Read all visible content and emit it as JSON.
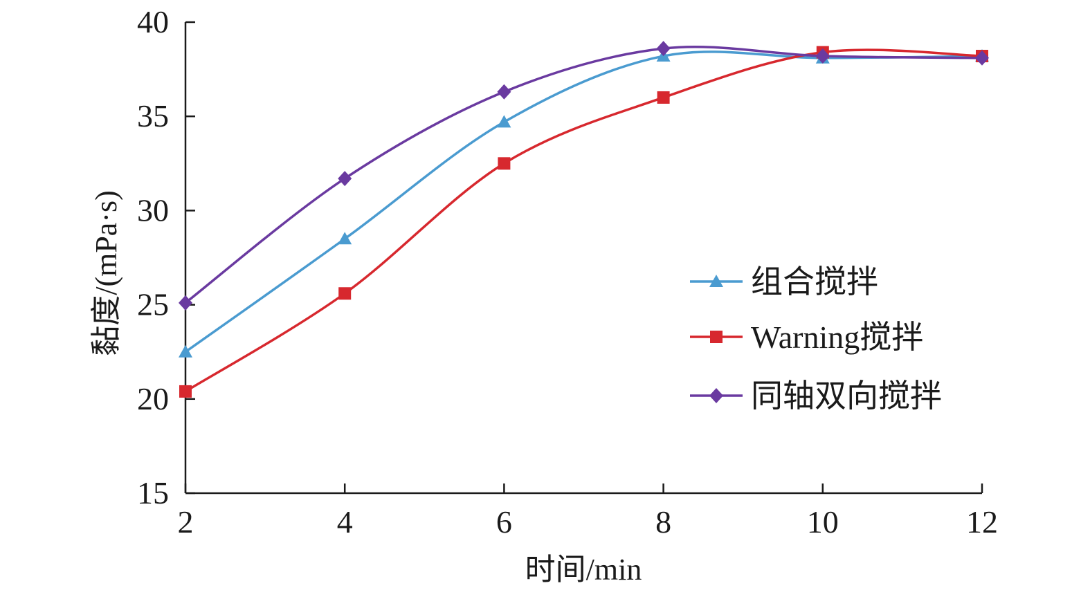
{
  "chart_data": {
    "type": "line",
    "title": "",
    "xlabel": "时间/min",
    "ylabel": "黏度/(mPa·s)",
    "x": [
      2,
      4,
      6,
      8,
      10,
      12
    ],
    "xticks": [
      "2",
      "4",
      "6",
      "8",
      "10",
      "12"
    ],
    "yticks": [
      "15",
      "20",
      "25",
      "30",
      "35",
      "40"
    ],
    "xlim": [
      2,
      12
    ],
    "ylim": [
      15,
      40
    ],
    "grid": false,
    "legend_position": "right",
    "series": [
      {
        "name": "组合搅拌",
        "color": "#4a9bd0",
        "marker": "triangle",
        "values": [
          22.5,
          28.5,
          34.7,
          38.2,
          38.1,
          38.2
        ]
      },
      {
        "name": "Warning搅拌",
        "color": "#d7282e",
        "marker": "square",
        "values": [
          20.4,
          25.6,
          32.5,
          36.0,
          38.4,
          38.2
        ]
      },
      {
        "name": "同轴双向搅拌",
        "color": "#6a3aa0",
        "marker": "diamond",
        "values": [
          25.1,
          31.7,
          36.3,
          38.6,
          38.2,
          38.1
        ]
      }
    ]
  }
}
